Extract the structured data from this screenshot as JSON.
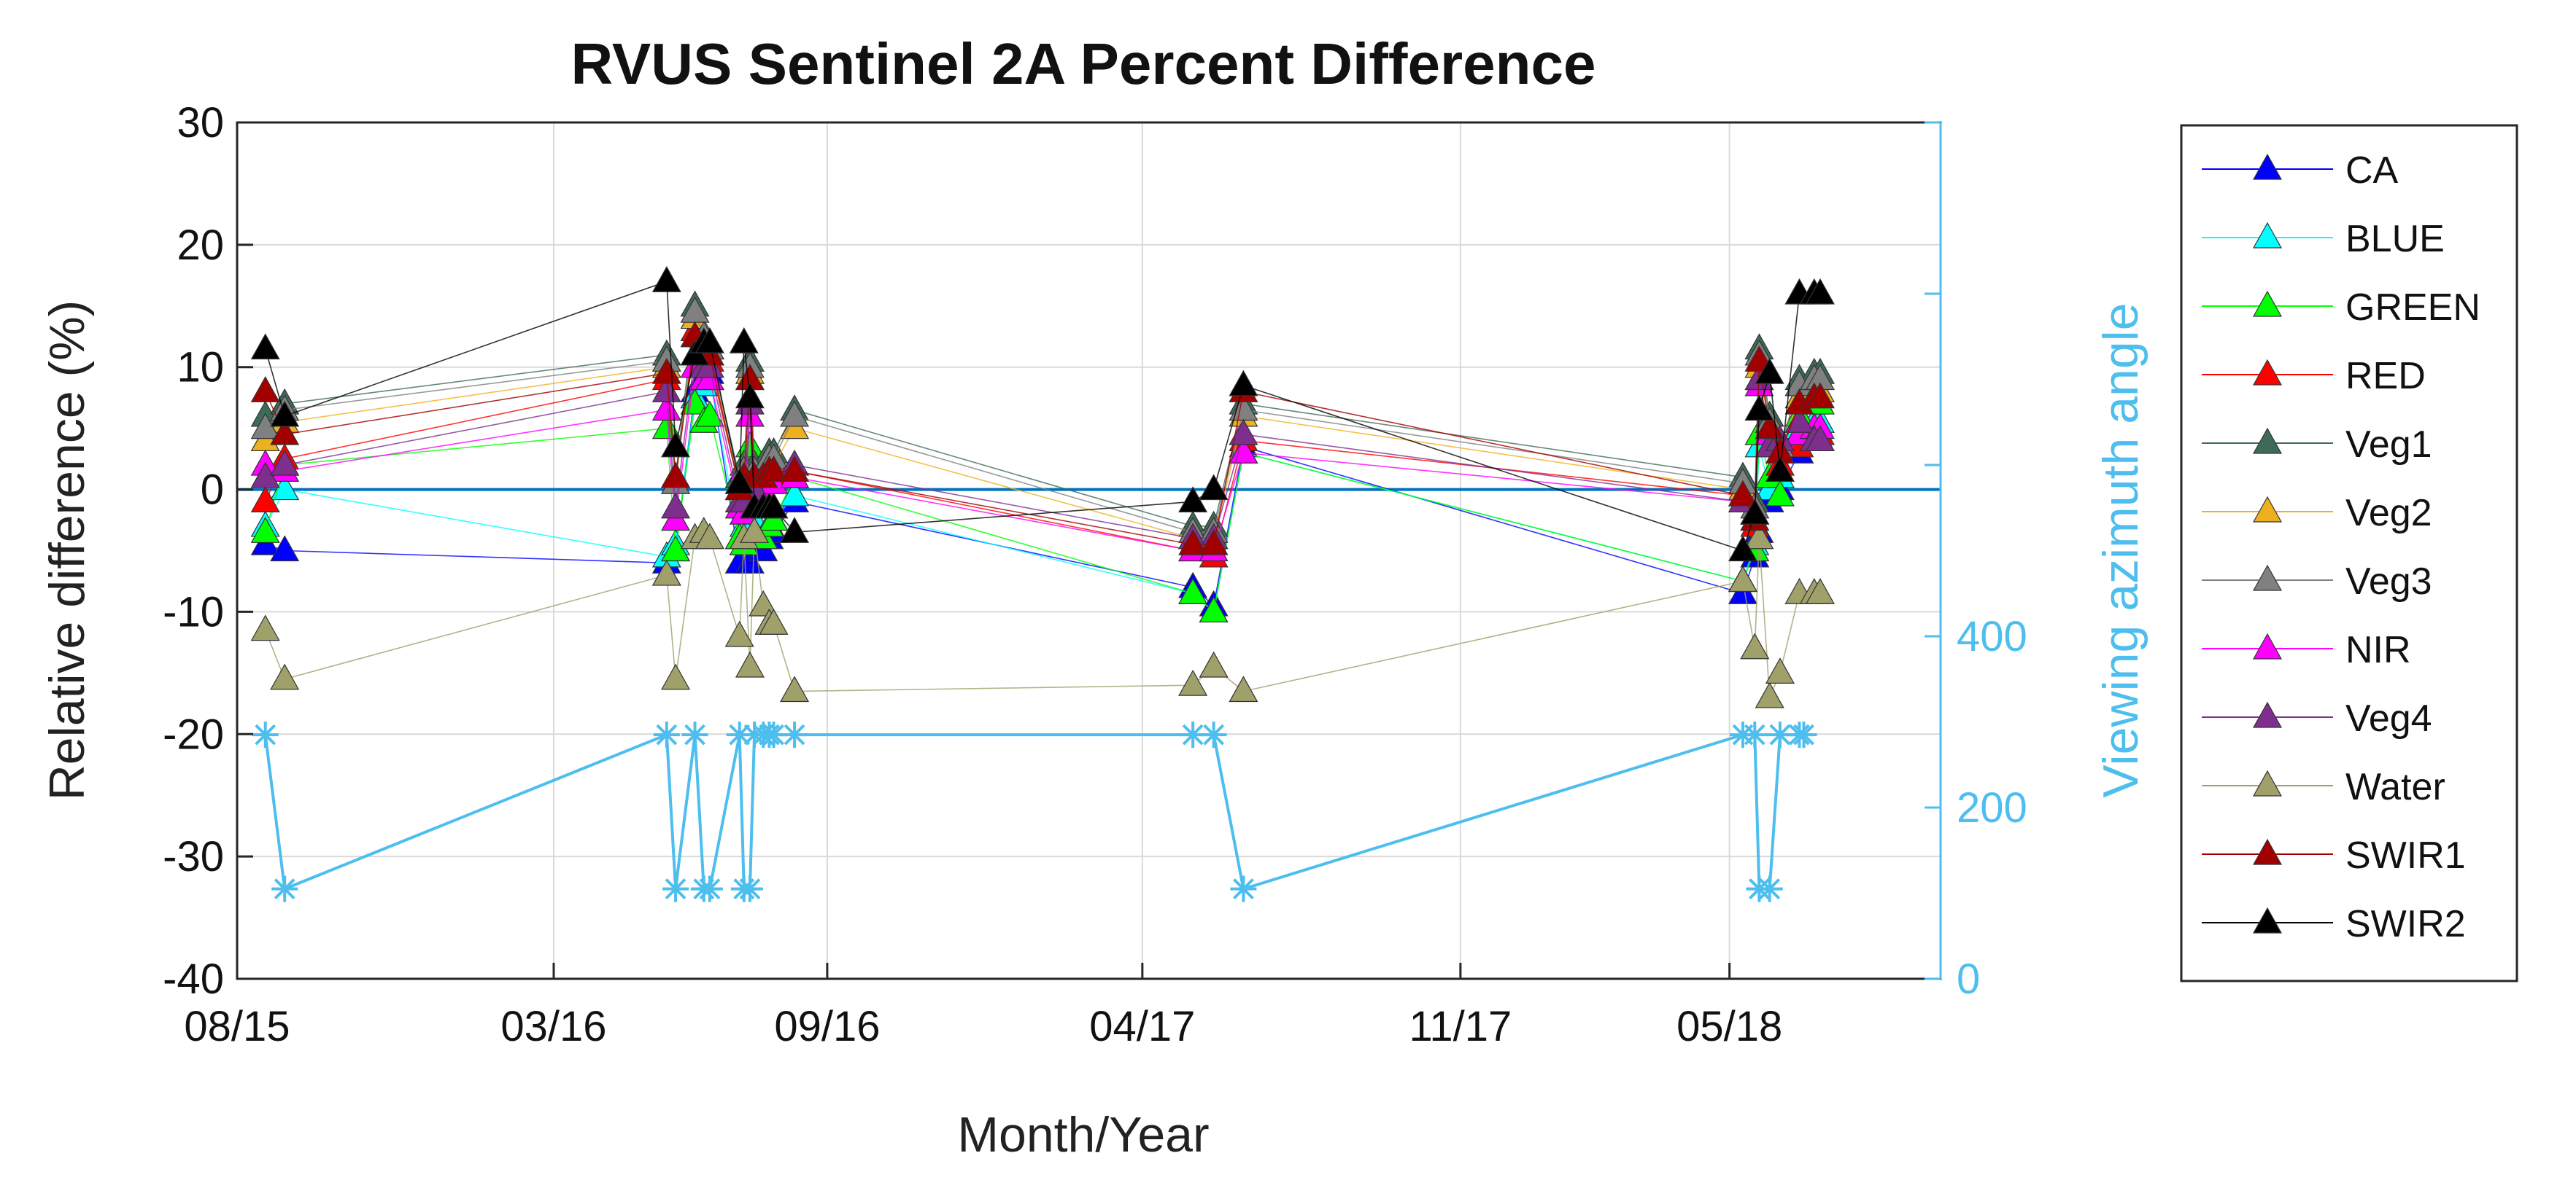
{
  "chart_data": {
    "type": "line",
    "title": "RVUS Sentinel 2A Percent Difference",
    "xlabel": "Month/Year",
    "ylabel": "Relative difference (%)",
    "y2label": "Viewing azimuth angle",
    "ylim": [
      -40,
      30
    ],
    "y2lim": [
      0,
      1000
    ],
    "yticks": [
      30,
      20,
      10,
      0,
      -10,
      -20,
      -30,
      -40
    ],
    "y2ticks": [
      0,
      200,
      400
    ],
    "xticks": [
      "08/15",
      "03/16",
      "09/16",
      "04/17",
      "11/17",
      "05/18"
    ],
    "xtick_dates": [
      "2015-08-01",
      "2016-03-01",
      "2016-09-01",
      "2017-04-01",
      "2017-11-01",
      "2018-05-01"
    ],
    "xlim": [
      "2015-08-01",
      "2018-09-20"
    ],
    "grid": true,
    "legend_position": "right, outside",
    "dates": [
      "2015-08-20",
      "2015-09-02",
      "2016-05-16",
      "2016-05-22",
      "2016-06-04",
      "2016-06-10",
      "2016-06-14",
      "2016-07-04",
      "2016-07-07",
      "2016-07-11",
      "2016-07-14",
      "2016-07-20",
      "2016-07-24",
      "2016-07-27",
      "2016-08-10",
      "2017-05-05",
      "2017-05-19",
      "2017-06-08",
      "2018-05-10",
      "2018-05-18",
      "2018-05-21",
      "2018-05-28",
      "2018-06-04",
      "2018-06-17",
      "2018-06-27",
      "2018-07-01"
    ],
    "series": [
      {
        "name": "CA",
        "color": "#0000FF",
        "values": [
          -4.5,
          -5,
          -6,
          -5,
          8,
          9,
          9.5,
          -6,
          -4.5,
          -6,
          -3.5,
          -5,
          -4,
          -3.5,
          -1,
          -8,
          -9.5,
          3.5,
          -8.5,
          -5.5,
          -3.5,
          -1,
          0,
          3,
          4,
          4
        ]
      },
      {
        "name": "BLUE",
        "color": "#00FFFF",
        "values": [
          -3,
          0,
          -5.5,
          -4.5,
          7.5,
          8.5,
          9,
          -4,
          -3,
          -4,
          -2.5,
          -4,
          -3,
          -2.5,
          -0.5,
          -8.5,
          -10,
          3,
          -7.5,
          -4.5,
          3.5,
          0,
          1,
          5,
          5.5,
          5.5
        ]
      },
      {
        "name": "GREEN",
        "color": "#00FF00",
        "values": [
          -3.5,
          2,
          5,
          -5,
          7,
          5.5,
          6,
          -4,
          -4.5,
          3.5,
          -3.5,
          -4,
          -3,
          -2.5,
          1,
          -8.5,
          -10,
          3,
          -7.5,
          -5,
          4.5,
          1,
          -0.5,
          6,
          7,
          7
        ]
      },
      {
        "name": "RED",
        "color": "#FF0000",
        "values": [
          -1,
          2.5,
          9,
          1,
          13,
          11,
          10.5,
          0,
          0.5,
          9,
          0.5,
          0,
          1,
          1,
          1.5,
          -5,
          -5.5,
          4,
          -0.5,
          -3,
          9,
          4.5,
          2,
          3.5,
          4.5,
          4.5
        ]
      },
      {
        "name": "Veg1",
        "color": "#3E6B57",
        "values": [
          6,
          7,
          11,
          1,
          15,
          12,
          11.5,
          1,
          2,
          10.5,
          2,
          2,
          3,
          3,
          6.5,
          -3,
          -3,
          7,
          1,
          -1,
          11.5,
          6,
          3,
          9,
          9.5,
          9.5
        ]
      },
      {
        "name": "Veg2",
        "color": "#EDB120",
        "values": [
          4,
          5.5,
          10,
          0.5,
          14,
          12,
          11,
          0,
          1,
          9.5,
          1,
          1,
          2,
          2,
          5,
          -4,
          -4,
          6,
          0,
          -2,
          10,
          5,
          3,
          7.5,
          8,
          8
        ]
      },
      {
        "name": "Veg3",
        "color": "#808080",
        "values": [
          5,
          6.5,
          10.5,
          0.5,
          14.5,
          12.5,
          11.5,
          0.5,
          1.5,
          10,
          1.5,
          1.5,
          2.5,
          2.5,
          6,
          -3.5,
          -3.5,
          6.5,
          0.5,
          -1.5,
          11,
          5.5,
          3.5,
          8.5,
          9,
          9
        ]
      },
      {
        "name": "NIR",
        "color": "#FF00FF",
        "values": [
          2,
          1.5,
          6.5,
          -2.5,
          10,
          9,
          9,
          -1.5,
          -2,
          6,
          -1.5,
          0,
          0.5,
          0.5,
          1,
          -5,
          -5,
          3,
          -1,
          -2,
          8.5,
          4.5,
          1.5,
          4.5,
          5,
          5
        ]
      },
      {
        "name": "Veg4",
        "color": "#7E2F8E",
        "values": [
          1,
          2,
          8,
          -1.5,
          11,
          10,
          10,
          -1,
          -1,
          7,
          0,
          1,
          1.5,
          1.5,
          2,
          -4,
          -4,
          4.5,
          -1,
          -2.5,
          9,
          3.5,
          4,
          5.5,
          4,
          4
        ]
      },
      {
        "name": "Water",
        "color": "#A0A06A",
        "values": [
          -11.5,
          -15.5,
          -7,
          -15.5,
          -4,
          -3.5,
          -4,
          -12,
          -4,
          -14.5,
          -3.5,
          -9.5,
          -11,
          -11,
          -16.5,
          -16,
          -14.5,
          -16.5,
          -7.5,
          -13,
          -4,
          -17,
          -15,
          -8.5,
          -8.5,
          -8.5
        ]
      },
      {
        "name": "SWIR1",
        "color": "#A20000",
        "values": [
          8,
          4.5,
          9.5,
          1,
          12.5,
          11,
          11,
          0,
          1,
          9,
          1,
          1,
          1.5,
          1.5,
          1.5,
          -4.5,
          -4.5,
          8,
          -0.5,
          -2.5,
          10.5,
          5,
          3,
          7,
          7.5,
          7.5
        ]
      },
      {
        "name": "SWIR2",
        "color": "#000000",
        "values": [
          11.5,
          6,
          17,
          3.5,
          11,
          12,
          12,
          0.5,
          12,
          7.5,
          -1.5,
          -1.5,
          -1.5,
          -1.5,
          -3.5,
          -1,
          0,
          8.5,
          -5,
          -2,
          6.5,
          9.5,
          1.5,
          16,
          16,
          16
        ]
      }
    ],
    "azimuth_series": {
      "name": "Viewing azimuth angle",
      "color": "#4DBEEE",
      "dates": [
        "2015-08-20",
        "2015-09-02",
        "2016-05-16",
        "2016-05-22",
        "2016-06-04",
        "2016-06-10",
        "2016-06-14",
        "2016-07-04",
        "2016-07-07",
        "2016-07-11",
        "2016-07-14",
        "2016-07-20",
        "2016-07-24",
        "2016-07-27",
        "2016-08-10",
        "2017-05-05",
        "2017-05-19",
        "2017-06-08",
        "2018-05-10",
        "2018-05-18",
        "2018-05-21",
        "2018-05-28",
        "2018-06-04",
        "2018-06-17",
        "2018-06-20"
      ],
      "values": [
        285,
        105,
        285,
        105,
        285,
        105,
        105,
        285,
        105,
        105,
        285,
        285,
        285,
        285,
        285,
        285,
        285,
        105,
        285,
        285,
        105,
        105,
        285,
        285,
        285
      ]
    }
  }
}
